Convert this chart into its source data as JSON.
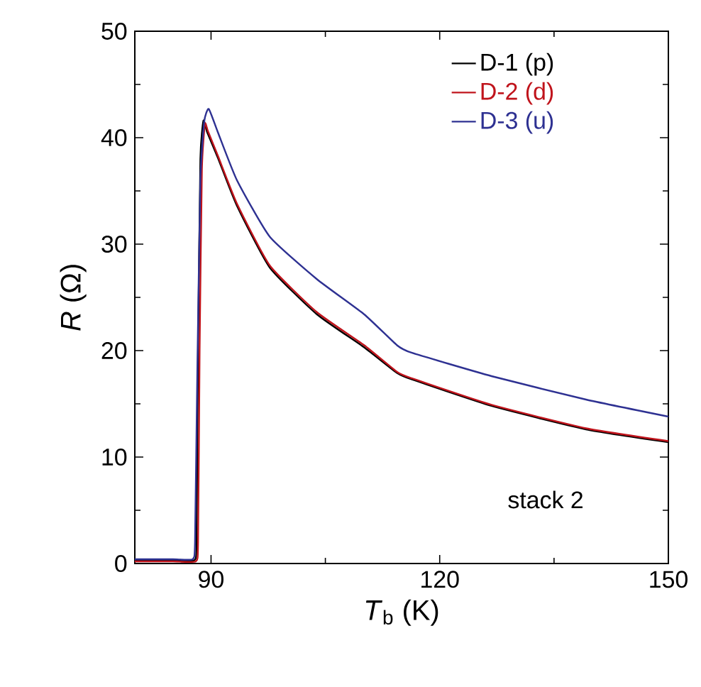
{
  "chart_data": {
    "type": "line",
    "xlabel": "*T*$_{b}$ (K)",
    "ylabel": "*R* (Ω)",
    "xlim": [
      80,
      150
    ],
    "xticks": [
      90,
      120,
      150
    ],
    "ylim": [
      0,
      50
    ],
    "yticks": [
      0,
      10,
      20,
      30,
      40,
      50
    ],
    "grid": false,
    "legend": "top right",
    "marker": "none",
    "line_style": "solid",
    "annotations": [
      "stack 2"
    ],
    "series": [
      {
        "name": "D-1 (p)",
        "color": "#000000",
        "x": [
          80,
          85,
          87.8,
          88.1,
          88.3,
          88.6,
          89.0,
          89.5,
          90.9,
          93.4,
          97.7,
          103.9,
          110.1,
          114.4,
          116.3,
          126.8,
          139.2,
          150
        ],
        "values": [
          0.3,
          0.3,
          0.3,
          2,
          20,
          38,
          41.6,
          40.5,
          38.1,
          33.6,
          27.8,
          23.4,
          20.3,
          17.9,
          17.3,
          14.8,
          12.6,
          11.4
        ]
      },
      {
        "name": "D-2 (d)",
        "color": "#c0141c",
        "x": [
          80,
          85,
          88.0,
          88.3,
          88.5,
          88.8,
          89.2,
          89.6,
          90.9,
          93.4,
          97.7,
          103.9,
          110.1,
          114.4,
          116.3,
          126.8,
          139.2,
          150
        ],
        "values": [
          0.2,
          0.2,
          0.2,
          2,
          20,
          37,
          41.3,
          40.6,
          38.3,
          33.8,
          28.0,
          23.6,
          20.5,
          18.0,
          17.4,
          14.9,
          12.7,
          11.5
        ]
      },
      {
        "name": "D-3 (u)",
        "color": "#2e3192",
        "x": [
          80,
          85,
          87.6,
          87.9,
          88.2,
          88.6,
          89.1,
          89.7,
          90.9,
          93.4,
          97.7,
          103.9,
          110.1,
          114.4,
          116.3,
          126.8,
          139.2,
          150
        ],
        "values": [
          0.4,
          0.4,
          0.4,
          2,
          18,
          36,
          41.5,
          42.7,
          40.5,
          36.0,
          30.7,
          26.7,
          23.4,
          20.5,
          19.8,
          17.6,
          15.4,
          13.8
        ]
      }
    ]
  }
}
